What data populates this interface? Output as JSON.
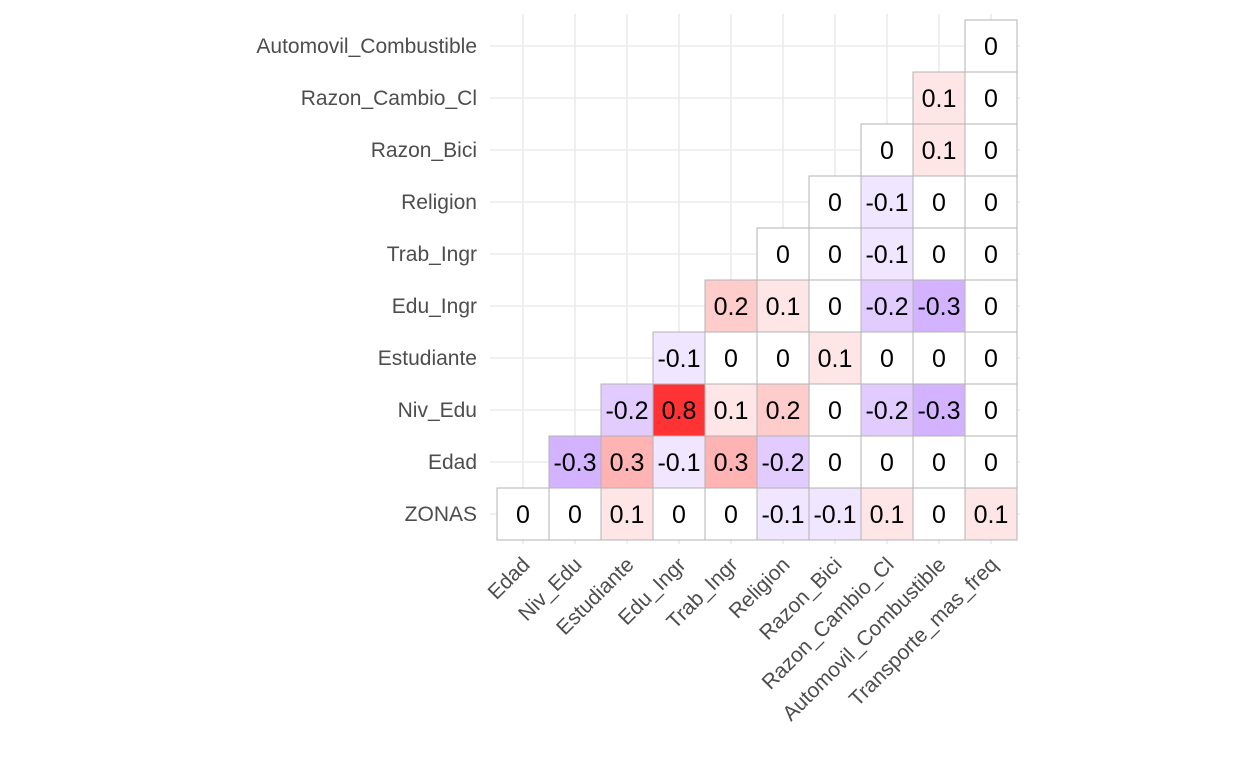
{
  "chart_data": {
    "type": "heatmap",
    "x_categories": [
      "Edad",
      "Niv_Edu",
      "Estudiante",
      "Edu_Ingr",
      "Trab_Ingr",
      "Religion",
      "Razon_Bici",
      "Razon_Cambio_Cl",
      "Automovil_Combustible",
      "Transporte_mas_freq"
    ],
    "y_categories": [
      "ZONAS",
      "Edad",
      "Niv_Edu",
      "Estudiante",
      "Edu_Ingr",
      "Trab_Ingr",
      "Religion",
      "Razon_Bici",
      "Razon_Cambio_Cl",
      "Automovil_Combustible"
    ],
    "rows": [
      {
        "y": "Automovil_Combustible",
        "values": [
          null,
          null,
          null,
          null,
          null,
          null,
          null,
          null,
          null,
          0
        ]
      },
      {
        "y": "Razon_Cambio_Cl",
        "values": [
          null,
          null,
          null,
          null,
          null,
          null,
          null,
          null,
          0.1,
          0
        ]
      },
      {
        "y": "Razon_Bici",
        "values": [
          null,
          null,
          null,
          null,
          null,
          null,
          null,
          0,
          0.1,
          0
        ]
      },
      {
        "y": "Religion",
        "values": [
          null,
          null,
          null,
          null,
          null,
          null,
          0,
          -0.1,
          0,
          0
        ]
      },
      {
        "y": "Trab_Ingr",
        "values": [
          null,
          null,
          null,
          null,
          null,
          0,
          0,
          -0.1,
          0,
          0
        ]
      },
      {
        "y": "Edu_Ingr",
        "values": [
          null,
          null,
          null,
          null,
          0.2,
          0.1,
          0,
          -0.2,
          -0.3,
          0
        ]
      },
      {
        "y": "Estudiante",
        "values": [
          null,
          null,
          null,
          -0.1,
          0,
          0,
          0.1,
          0,
          0,
          0
        ]
      },
      {
        "y": "Niv_Edu",
        "values": [
          null,
          null,
          -0.2,
          0.8,
          0.1,
          0.2,
          0,
          -0.2,
          -0.3,
          0
        ]
      },
      {
        "y": "Edad",
        "values": [
          null,
          -0.3,
          0.3,
          -0.1,
          0.3,
          -0.2,
          0,
          0,
          0,
          0
        ]
      },
      {
        "y": "ZONAS",
        "values": [
          0,
          0,
          0.1,
          0,
          0,
          -0.1,
          -0.1,
          0.1,
          0,
          0.1
        ]
      }
    ],
    "color_scale": {
      "low": "#6D00FF",
      "mid": "#FFFFFF",
      "high": "#FF0000",
      "range": [
        -1,
        1
      ]
    },
    "grid": true,
    "legend": "none"
  }
}
